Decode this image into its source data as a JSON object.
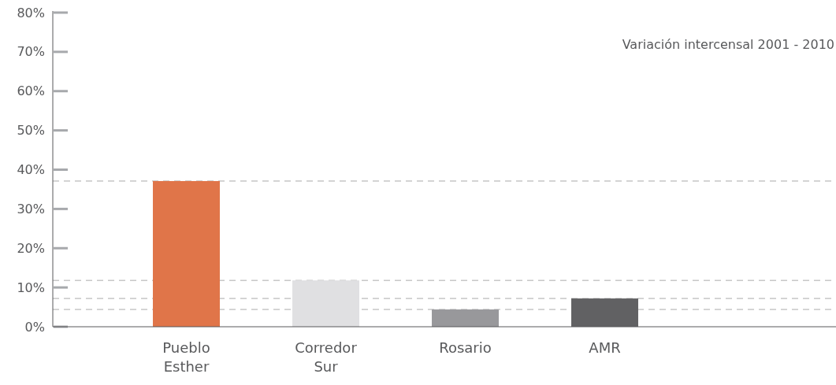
{
  "chart_data": {
    "type": "bar",
    "annotations": [
      "Variación intercensal 2001 - 2010"
    ],
    "categories": [
      "Pueblo Esther",
      "Corredor Sur",
      "Rosario",
      "AMR"
    ],
    "values": [
      37.1,
      11.8,
      4.4,
      7.2
    ],
    "colors": [
      "#e07549",
      "#e0e0e2",
      "#98989b",
      "#616163"
    ],
    "ylim": [
      0,
      80
    ],
    "yticks": [
      {
        "value": 0,
        "label": "0%"
      },
      {
        "value": 10,
        "label": "10%"
      },
      {
        "value": 20,
        "label": "20%"
      },
      {
        "value": 30,
        "label": "30%"
      },
      {
        "value": 40,
        "label": "40%"
      },
      {
        "value": 50,
        "label": "50%"
      },
      {
        "value": 60,
        "label": "60%"
      },
      {
        "value": 70,
        "label": "70%"
      },
      {
        "value": 80,
        "label": "80%"
      }
    ],
    "ref_lines": [
      {
        "axis": "y",
        "value": 37.1,
        "line_style": "dashed",
        "color": "#aaaaaa"
      },
      {
        "axis": "y",
        "value": 11.8,
        "line_style": "dashed",
        "color": "#aaaaaa"
      },
      {
        "axis": "y",
        "value": 7.2,
        "line_style": "dashed",
        "color": "#aaaaaa"
      },
      {
        "axis": "y",
        "value": 4.4,
        "line_style": "dashed",
        "color": "#aaaaaa"
      }
    ],
    "grid": false
  }
}
